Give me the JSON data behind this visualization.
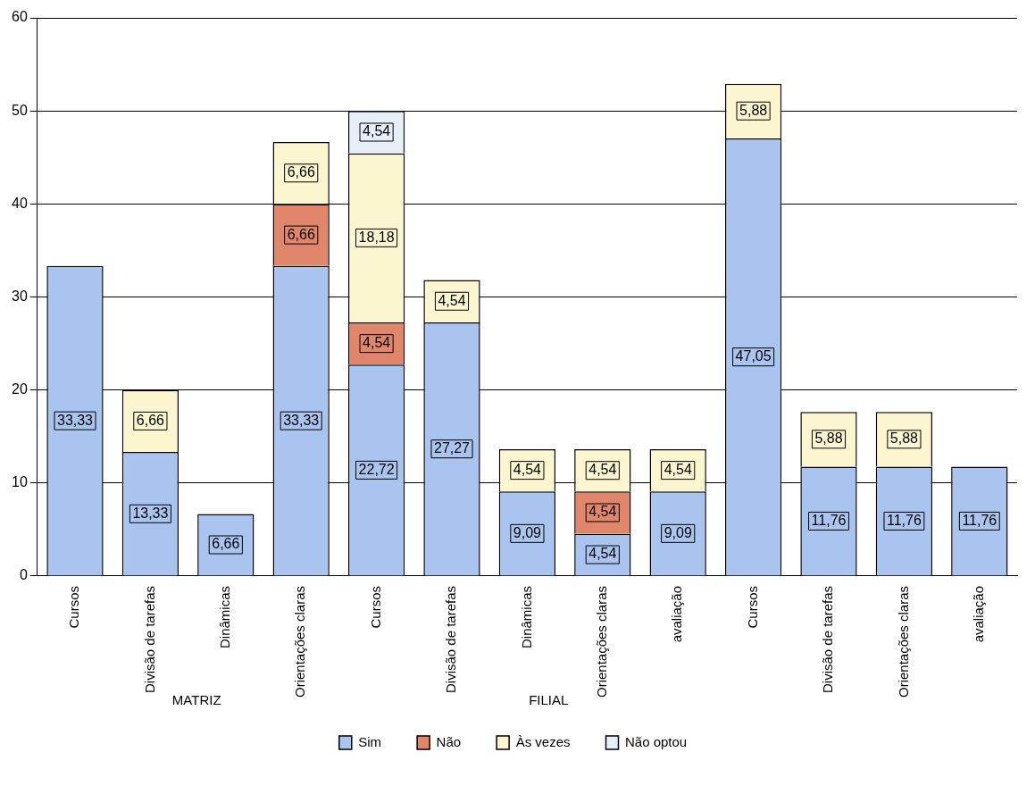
{
  "chart_data": {
    "type": "bar",
    "stacked": true,
    "categories": [
      "Cursos",
      "Divisão de tarefas",
      "Dinâmicas",
      "Orientações claras",
      "Cursos",
      "Divisão de tarefas",
      "Dinâmicas",
      "Orientações claras",
      "avaliação",
      "Cursos",
      "Divisão de tarefas",
      "Orientações claras",
      "avaliação"
    ],
    "series": [
      {
        "name": "Sim",
        "color": "#a9c4ef",
        "values": [
          33.33,
          13.33,
          6.66,
          33.33,
          22.72,
          27.27,
          9.09,
          4.54,
          9.09,
          47.05,
          11.76,
          11.76,
          11.76
        ],
        "value_labels": [
          "33,33",
          "13,33",
          "6,66",
          "33,33",
          "22,72",
          "27,27",
          "9,09",
          "4,54",
          "9,09",
          "47,05",
          "11,76",
          "11,76",
          "11,76"
        ]
      },
      {
        "name": "Não",
        "color": "#e0866a",
        "values": [
          null,
          null,
          null,
          6.66,
          4.54,
          null,
          null,
          4.54,
          null,
          null,
          null,
          null,
          null
        ],
        "value_labels": [
          null,
          null,
          null,
          "6,66",
          "4,54",
          null,
          null,
          "4,54",
          null,
          null,
          null,
          null,
          null
        ]
      },
      {
        "name": "Às vezes",
        "color": "#fbf6d0",
        "values": [
          null,
          6.66,
          null,
          6.66,
          18.18,
          4.54,
          4.54,
          4.54,
          4.54,
          5.88,
          5.88,
          5.88,
          null
        ],
        "value_labels": [
          null,
          "6,66",
          null,
          "6,66",
          "18,18",
          "4,54",
          "4,54",
          "4,54",
          "4,54",
          "5,88",
          "5,88",
          "5,88",
          null
        ]
      },
      {
        "name": "Não optou",
        "color": "#e6eef8",
        "values": [
          null,
          null,
          null,
          null,
          4.54,
          null,
          null,
          null,
          null,
          null,
          null,
          null,
          null
        ],
        "value_labels": [
          null,
          null,
          null,
          null,
          "4,54",
          null,
          null,
          null,
          null,
          null,
          null,
          null,
          null
        ]
      }
    ],
    "ylim": [
      0,
      60
    ],
    "yticks": [
      0,
      10,
      20,
      30,
      40,
      50,
      60
    ],
    "grid": "y",
    "legend": "bottom",
    "annotations": [
      "MATRIZ",
      "FILIAL"
    ]
  }
}
